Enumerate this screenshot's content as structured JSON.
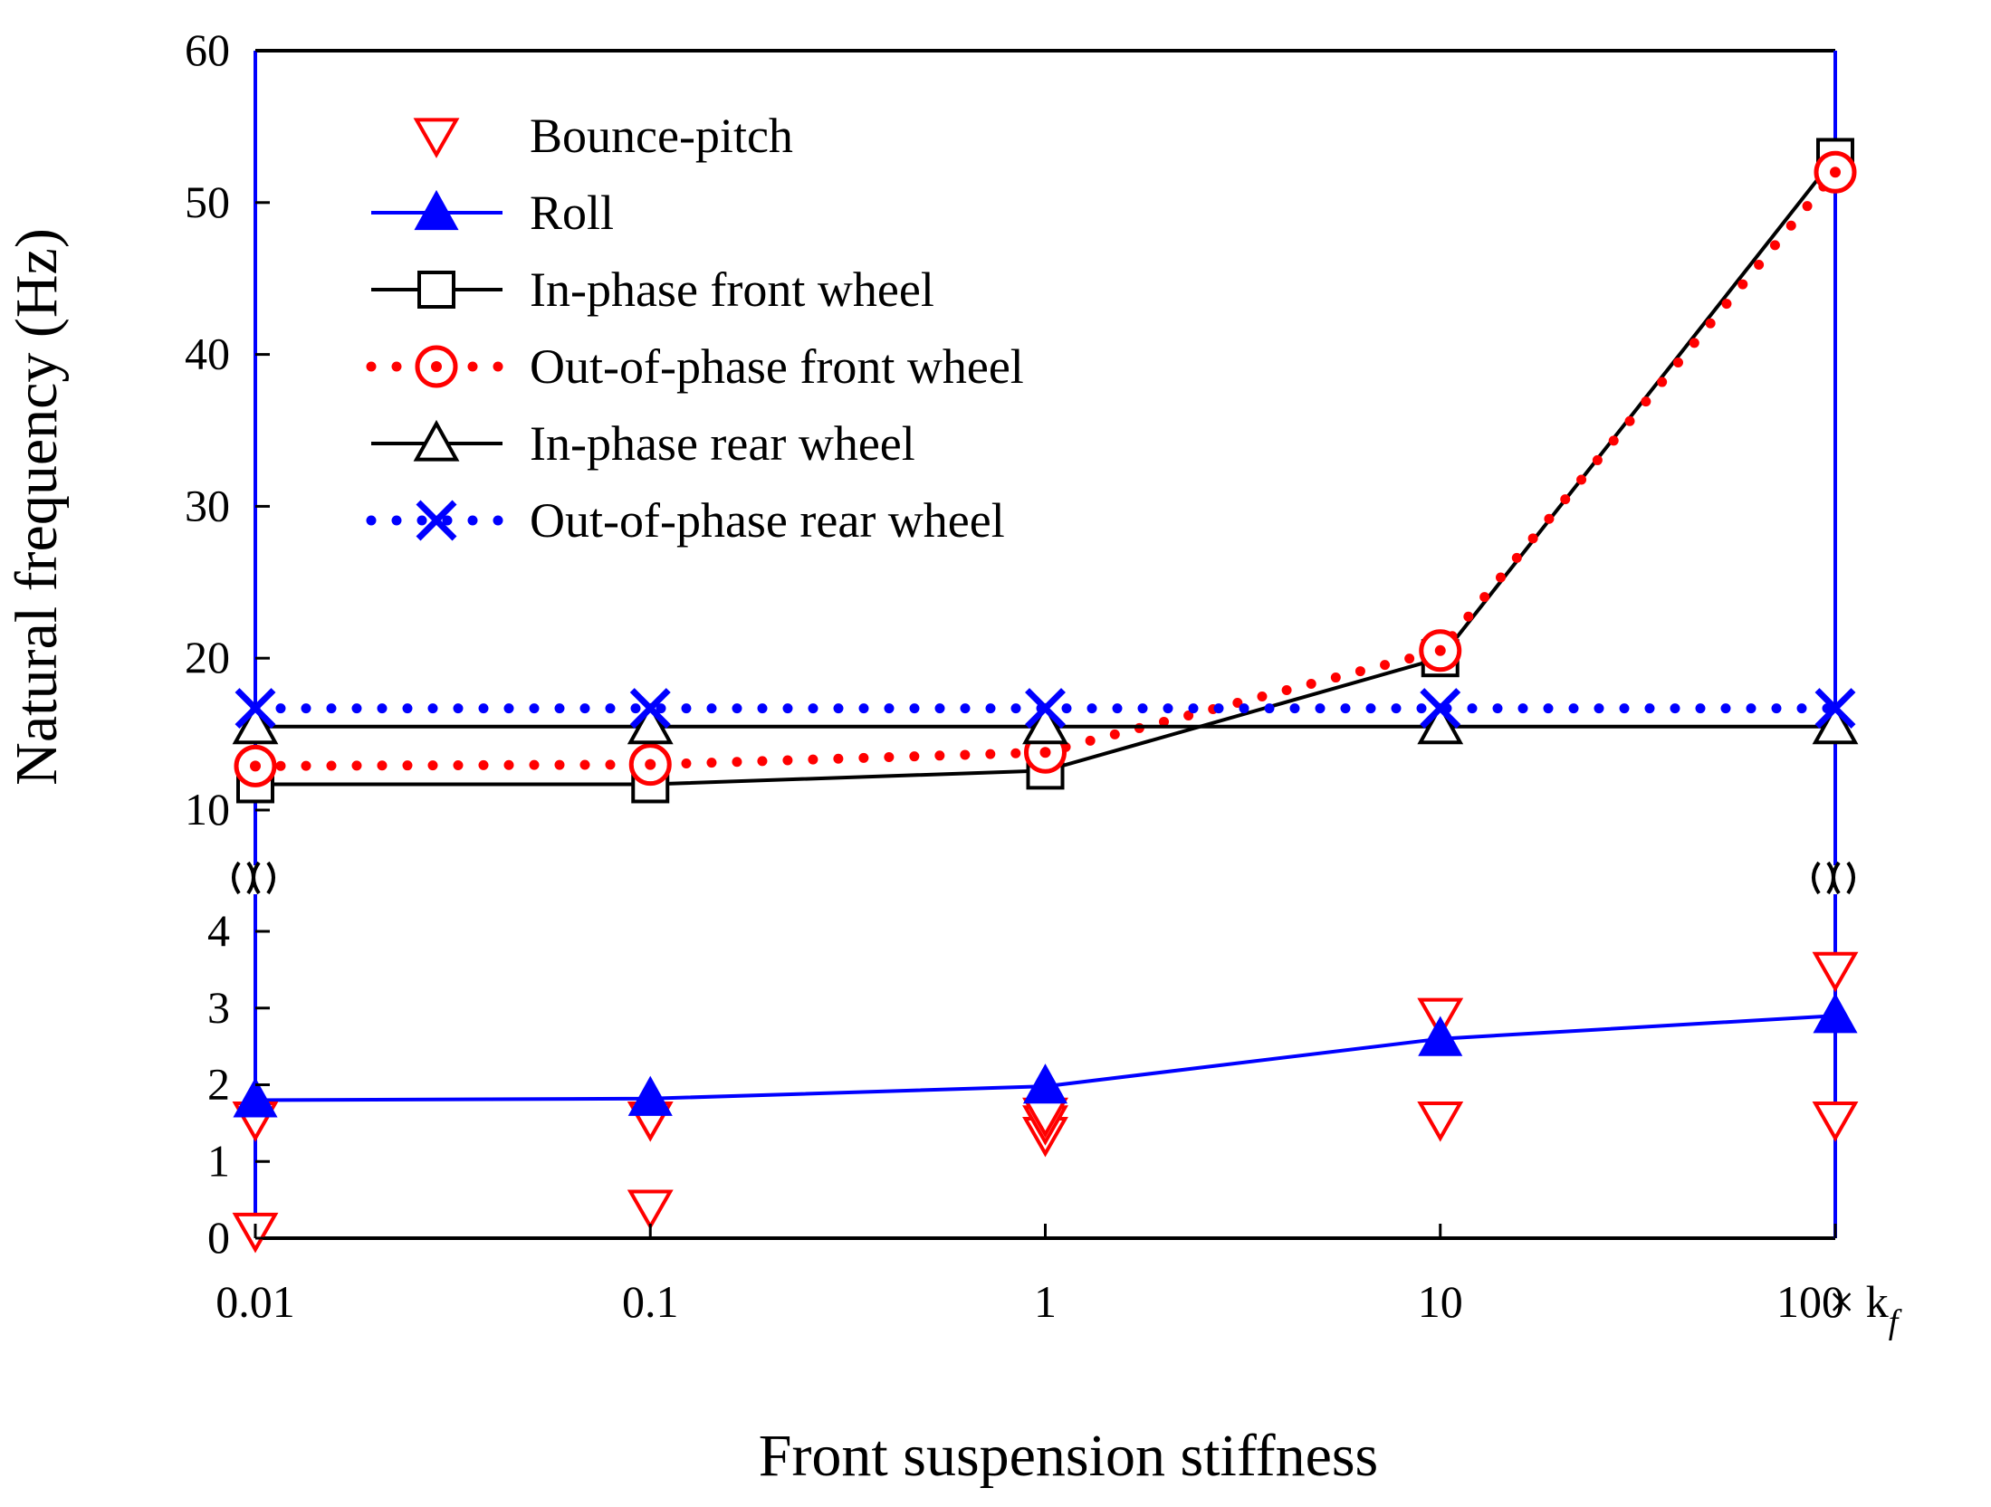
{
  "chart_data": {
    "type": "line",
    "xlabel": "Front suspension stiffness",
    "ylabel": "Natural frequency (Hz)",
    "x_unit": "× k",
    "x_unit_sub": "f",
    "x": [
      0.01,
      0.1,
      1,
      10,
      100
    ],
    "x_tick_labels": [
      "0.01",
      "0.1",
      "1",
      "10",
      "100"
    ],
    "x_scale": "log",
    "y_break": {
      "lower": [
        0,
        4.5
      ],
      "upper": [
        10,
        60
      ]
    },
    "y_ticks_lower": [
      "0",
      "1",
      "2",
      "3",
      "4"
    ],
    "y_ticks_upper": [
      "10",
      "20",
      "30",
      "40",
      "50",
      "60"
    ],
    "series": [
      {
        "name": "Bounce-pitch",
        "color": "#ff0000",
        "line": "none",
        "marker": "triangle-down-open",
        "points": [
          [
            0.01,
            0.1
          ],
          [
            0.01,
            1.55
          ],
          [
            0.1,
            0.4
          ],
          [
            0.1,
            1.55
          ],
          [
            1,
            1.35
          ],
          [
            1,
            1.5
          ],
          [
            1,
            1.6
          ],
          [
            10,
            1.55
          ],
          [
            10,
            2.9
          ],
          [
            100,
            1.55
          ],
          [
            100,
            3.5
          ]
        ]
      },
      {
        "name": "Roll",
        "color": "#0000ff",
        "line": "solid",
        "marker": "triangle-up-filled",
        "values": [
          1.8,
          1.82,
          1.98,
          2.6,
          2.9
        ]
      },
      {
        "name": "In-phase front wheel",
        "color": "#000000",
        "line": "solid",
        "marker": "square-open",
        "values": [
          11.7,
          11.7,
          12.6,
          20,
          53
        ]
      },
      {
        "name": "Out-of-phase front wheel",
        "color": "#ff0000",
        "line": "dotted",
        "marker": "circle-dot-open",
        "values": [
          12.9,
          13.0,
          13.8,
          20.5,
          52
        ]
      },
      {
        "name": "In-phase rear wheel",
        "color": "#000000",
        "line": "solid",
        "marker": "triangle-up-open",
        "values": [
          15.5,
          15.5,
          15.5,
          15.5,
          15.5
        ]
      },
      {
        "name": "Out-of-phase rear wheel",
        "color": "#0000ff",
        "line": "dotted",
        "marker": "x",
        "values": [
          16.7,
          16.7,
          16.7,
          16.7,
          16.7
        ]
      }
    ]
  }
}
